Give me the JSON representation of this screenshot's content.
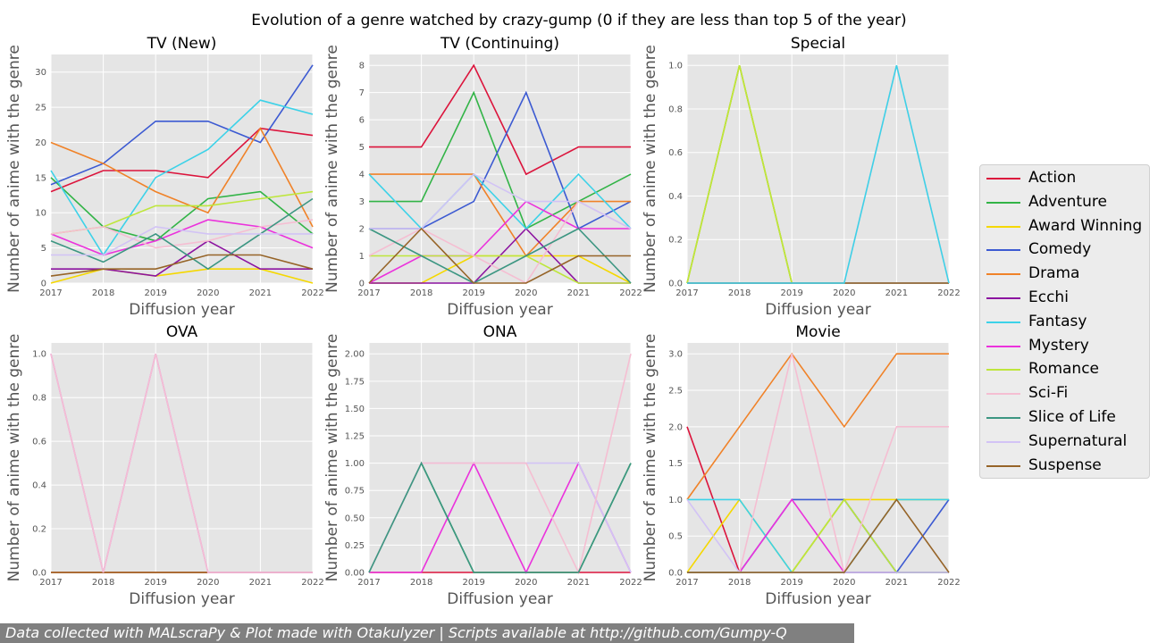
{
  "suptitle": "Evolution of a genre watched by crazy-gump (0 if they are less than top 5 of the year)",
  "footer": "Data collected with MALscraPy & Plot made with Otakulyzer | Scripts available at http://github.com/Gumpy-Q",
  "legend": [
    {
      "name": "Action",
      "color": "#dc143c"
    },
    {
      "name": "Adventure",
      "color": "#32b447"
    },
    {
      "name": "Award Winning",
      "color": "#f5d800"
    },
    {
      "name": "Comedy",
      "color": "#3c5ad2"
    },
    {
      "name": "Drama",
      "color": "#f08228"
    },
    {
      "name": "Ecchi",
      "color": "#8c14a0"
    },
    {
      "name": "Fantasy",
      "color": "#3cd2e8"
    },
    {
      "name": "Mystery",
      "color": "#eb32dc"
    },
    {
      "name": "Romance",
      "color": "#bee63c"
    },
    {
      "name": "Sci-Fi",
      "color": "#f5bed2"
    },
    {
      "name": "Slice of Life",
      "color": "#3c9682"
    },
    {
      "name": "Supernatural",
      "color": "#d2c3f5"
    },
    {
      "name": "Suspense",
      "color": "#966428"
    }
  ],
  "chart_data": [
    {
      "type": "line",
      "title": "TV (New)",
      "xlabel": "Diffusion year",
      "ylabel": "Number of anime with the genre",
      "x": [
        2017,
        2018,
        2019,
        2020,
        2021,
        2022
      ],
      "xlim": [
        2017,
        2022
      ],
      "ylim": [
        0,
        32.5
      ],
      "yticks": [
        0,
        5,
        10,
        15,
        20,
        25,
        30
      ],
      "ytick_labels": [
        "0",
        "5",
        "10",
        "15",
        "20",
        "25",
        "30"
      ],
      "xtick_labels": [
        "2017",
        "2018",
        "2019",
        "2020",
        "2021",
        "2022"
      ],
      "grid": true,
      "series": [
        {
          "name": "Action",
          "values": [
            13,
            16,
            16,
            15,
            22,
            21
          ]
        },
        {
          "name": "Adventure",
          "values": [
            15,
            8,
            6,
            12,
            13,
            7
          ]
        },
        {
          "name": "Award Winning",
          "values": [
            0,
            2,
            1,
            2,
            2,
            0
          ]
        },
        {
          "name": "Comedy",
          "values": [
            14,
            17,
            23,
            23,
            20,
            31
          ]
        },
        {
          "name": "Drama",
          "values": [
            20,
            17,
            13,
            10,
            22,
            8
          ]
        },
        {
          "name": "Ecchi",
          "values": [
            2,
            2,
            1,
            6,
            2,
            2
          ]
        },
        {
          "name": "Fantasy",
          "values": [
            16,
            4,
            15,
            19,
            26,
            24
          ]
        },
        {
          "name": "Mystery",
          "values": [
            7,
            4,
            6,
            9,
            8,
            5
          ]
        },
        {
          "name": "Romance",
          "values": [
            7,
            8,
            11,
            11,
            12,
            13
          ]
        },
        {
          "name": "Sci-Fi",
          "values": [
            7,
            8,
            5,
            6,
            8,
            9
          ]
        },
        {
          "name": "Slice of Life",
          "values": [
            6,
            3,
            7,
            2,
            7,
            12
          ]
        },
        {
          "name": "Supernatural",
          "values": [
            4,
            4,
            8,
            7,
            7,
            7
          ]
        },
        {
          "name": "Suspense",
          "values": [
            1,
            2,
            2,
            4,
            4,
            2
          ]
        }
      ]
    },
    {
      "type": "line",
      "title": "TV (Continuing)",
      "xlabel": "Diffusion year",
      "ylabel": "Number of anime with the genre",
      "x": [
        2017,
        2018,
        2019,
        2020,
        2021,
        2022
      ],
      "xlim": [
        2017,
        2022
      ],
      "ylim": [
        0,
        8.4
      ],
      "yticks": [
        0,
        1,
        2,
        3,
        4,
        5,
        6,
        7,
        8
      ],
      "ytick_labels": [
        "0",
        "1",
        "2",
        "3",
        "4",
        "5",
        "6",
        "7",
        "8"
      ],
      "xtick_labels": [
        "2017",
        "2018",
        "2019",
        "2020",
        "2021",
        "2022"
      ],
      "grid": true,
      "series": [
        {
          "name": "Action",
          "values": [
            5,
            5,
            8,
            4,
            5,
            5
          ]
        },
        {
          "name": "Adventure",
          "values": [
            3,
            3,
            7,
            2,
            3,
            4
          ]
        },
        {
          "name": "Award Winning",
          "values": [
            0,
            0,
            1,
            1,
            1,
            0
          ]
        },
        {
          "name": "Comedy",
          "values": [
            2,
            2,
            3,
            7,
            2,
            3
          ]
        },
        {
          "name": "Drama",
          "values": [
            4,
            4,
            4,
            1,
            3,
            3
          ]
        },
        {
          "name": "Ecchi",
          "values": [
            0,
            0,
            0,
            2,
            0,
            0
          ]
        },
        {
          "name": "Fantasy",
          "values": [
            4,
            2,
            4,
            2,
            4,
            2
          ]
        },
        {
          "name": "Mystery",
          "values": [
            0,
            1,
            1,
            3,
            2,
            2
          ]
        },
        {
          "name": "Romance",
          "values": [
            1,
            1,
            1,
            1,
            0,
            0
          ]
        },
        {
          "name": "Sci-Fi",
          "values": [
            1,
            2,
            1,
            0,
            3,
            2
          ]
        },
        {
          "name": "Slice of Life",
          "values": [
            2,
            1,
            0,
            1,
            2,
            0
          ]
        },
        {
          "name": "Supernatural",
          "values": [
            2,
            2,
            4,
            3,
            3,
            2
          ]
        },
        {
          "name": "Suspense",
          "values": [
            0,
            2,
            0,
            0,
            1,
            1
          ]
        }
      ]
    },
    {
      "type": "line",
      "title": "Special",
      "xlabel": "Diffusion year",
      "ylabel": "Number of anime with the genre",
      "x": [
        2017,
        2018,
        2019,
        2020,
        2021,
        2022
      ],
      "xlim": [
        2017,
        2022
      ],
      "ylim": [
        0,
        1.05
      ],
      "yticks": [
        0,
        0.2,
        0.4,
        0.6,
        0.8,
        1.0
      ],
      "ytick_labels": [
        "0.0",
        "0.2",
        "0.4",
        "0.6",
        "0.8",
        "1.0"
      ],
      "xtick_labels": [
        "2017",
        "2018",
        "2019",
        "2020",
        "2021",
        "2022"
      ],
      "grid": true,
      "series": [
        {
          "name": "Action",
          "values": [
            0,
            0,
            0,
            0,
            0,
            0
          ]
        },
        {
          "name": "Adventure",
          "values": [
            0,
            1,
            0,
            0,
            0,
            0
          ]
        },
        {
          "name": "Award Winning",
          "values": [
            0,
            1,
            0,
            0,
            0,
            0
          ]
        },
        {
          "name": "Comedy",
          "values": [
            0,
            0,
            0,
            0,
            0,
            0
          ]
        },
        {
          "name": "Drama",
          "values": [
            0,
            0,
            0,
            0,
            0,
            0
          ]
        },
        {
          "name": "Ecchi",
          "values": [
            0,
            0,
            0,
            0,
            0,
            0
          ]
        },
        {
          "name": "Mystery",
          "values": [
            0,
            0,
            0,
            0,
            0,
            0
          ]
        },
        {
          "name": "Romance",
          "values": [
            0,
            1,
            0,
            0,
            0,
            0
          ]
        },
        {
          "name": "Sci-Fi",
          "values": [
            0,
            0,
            0,
            0,
            1,
            0
          ]
        },
        {
          "name": "Slice of Life",
          "values": [
            0,
            0,
            0,
            0,
            0,
            0
          ]
        },
        {
          "name": "Supernatural",
          "values": [
            0,
            0,
            0,
            0,
            0,
            0
          ]
        },
        {
          "name": "Suspense",
          "values": [
            0,
            0,
            0,
            0,
            0,
            0
          ]
        },
        {
          "name": "Fantasy",
          "values": [
            0,
            0,
            0,
            0,
            1,
            0
          ]
        }
      ]
    },
    {
      "type": "line",
      "title": "OVA",
      "xlabel": "Diffusion year",
      "ylabel": "Number of anime with the genre",
      "x": [
        2017,
        2018,
        2019,
        2020,
        2021,
        2022
      ],
      "xlim": [
        2017,
        2022
      ],
      "ylim": [
        0,
        1.05
      ],
      "yticks": [
        0,
        0.2,
        0.4,
        0.6,
        0.8,
        1.0
      ],
      "ytick_labels": [
        "0.0",
        "0.2",
        "0.4",
        "0.6",
        "0.8",
        "1.0"
      ],
      "xtick_labels": [
        "2017",
        "2018",
        "2019",
        "2020",
        "2021",
        "2022"
      ],
      "grid": true,
      "series": [
        {
          "name": "Action",
          "values": [
            0,
            0,
            0,
            0,
            0,
            0
          ]
        },
        {
          "name": "Drama",
          "values": [
            0,
            0,
            0,
            0,
            0,
            0
          ]
        },
        {
          "name": "Suspense",
          "values": [
            0,
            0,
            0,
            0,
            0,
            0
          ]
        },
        {
          "name": "Mystery",
          "values": [
            1,
            0,
            1,
            0,
            0,
            0
          ]
        },
        {
          "name": "Supernatural",
          "values": [
            1,
            0,
            1,
            0,
            0,
            0
          ]
        },
        {
          "name": "Sci-Fi",
          "values": [
            1,
            0,
            1,
            0,
            0,
            0
          ]
        }
      ]
    },
    {
      "type": "line",
      "title": "ONA",
      "xlabel": "Diffusion year",
      "ylabel": "Number of anime with the genre",
      "x": [
        2017,
        2018,
        2019,
        2020,
        2021,
        2022
      ],
      "xlim": [
        2017,
        2022
      ],
      "ylim": [
        0,
        2.1
      ],
      "yticks": [
        0,
        0.25,
        0.5,
        0.75,
        1.0,
        1.25,
        1.5,
        1.75,
        2.0
      ],
      "ytick_labels": [
        "0.00",
        "0.25",
        "0.50",
        "0.75",
        "1.00",
        "1.25",
        "1.50",
        "1.75",
        "2.00"
      ],
      "xtick_labels": [
        "2017",
        "2018",
        "2019",
        "2020",
        "2021",
        "2022"
      ],
      "grid": true,
      "series": [
        {
          "name": "Action",
          "values": [
            0,
            0,
            0,
            0,
            0,
            0
          ]
        },
        {
          "name": "Adventure",
          "values": [
            0,
            1,
            0,
            0,
            0,
            1
          ]
        },
        {
          "name": "Mystery",
          "values": [
            0,
            0,
            1,
            0,
            1,
            0
          ]
        },
        {
          "name": "Supernatural",
          "values": [
            0,
            1,
            1,
            1,
            1,
            0
          ]
        },
        {
          "name": "Sci-Fi",
          "values": [
            0,
            1,
            1,
            1,
            0,
            2
          ]
        },
        {
          "name": "Slice of Life",
          "values": [
            0,
            1,
            0,
            0,
            0,
            1
          ]
        }
      ]
    },
    {
      "type": "line",
      "title": "Movie",
      "xlabel": "Diffusion year",
      "ylabel": "Number of anime with the genre",
      "x": [
        2017,
        2018,
        2019,
        2020,
        2021,
        2022
      ],
      "xlim": [
        2017,
        2022
      ],
      "ylim": [
        0,
        3.15
      ],
      "yticks": [
        0,
        0.5,
        1.0,
        1.5,
        2.0,
        2.5,
        3.0
      ],
      "ytick_labels": [
        "0.0",
        "0.5",
        "1.0",
        "1.5",
        "2.0",
        "2.5",
        "3.0"
      ],
      "xtick_labels": [
        "2017",
        "2018",
        "2019",
        "2020",
        "2021",
        "2022"
      ],
      "grid": true,
      "series": [
        {
          "name": "Action",
          "values": [
            2,
            0,
            0,
            0,
            0,
            0
          ]
        },
        {
          "name": "Adventure",
          "values": [
            0,
            0,
            0,
            1,
            0,
            0
          ]
        },
        {
          "name": "Award Winning",
          "values": [
            0,
            1,
            0,
            1,
            1,
            1
          ]
        },
        {
          "name": "Comedy",
          "values": [
            0,
            0,
            1,
            1,
            0,
            1
          ]
        },
        {
          "name": "Drama",
          "values": [
            1,
            2,
            3,
            2,
            3,
            3
          ]
        },
        {
          "name": "Ecchi",
          "values": [
            0,
            0,
            0,
            0,
            0,
            0
          ]
        },
        {
          "name": "Fantasy",
          "values": [
            1,
            1,
            0,
            0,
            1,
            1
          ]
        },
        {
          "name": "Mystery",
          "values": [
            0,
            0,
            1,
            0,
            0,
            0
          ]
        },
        {
          "name": "Romance",
          "values": [
            0,
            0,
            0,
            1,
            0,
            0
          ]
        },
        {
          "name": "Sci-Fi",
          "values": [
            0,
            0,
            3,
            0,
            2,
            2
          ]
        },
        {
          "name": "Slice of Life",
          "values": [
            0,
            0,
            0,
            0,
            0,
            0
          ]
        },
        {
          "name": "Supernatural",
          "values": [
            1,
            0,
            0,
            0,
            0,
            0
          ]
        },
        {
          "name": "Suspense",
          "values": [
            0,
            0,
            0,
            0,
            1,
            0
          ]
        }
      ]
    }
  ]
}
